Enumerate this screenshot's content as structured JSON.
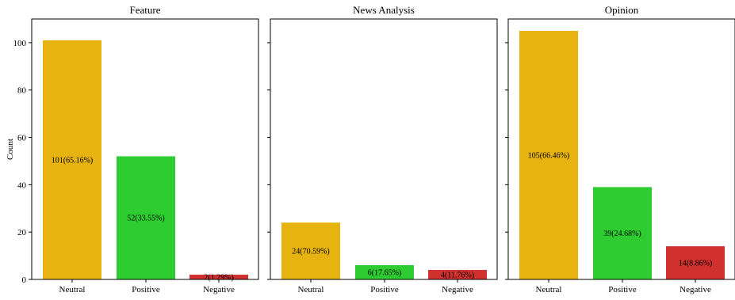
{
  "chart_data": {
    "type": "bar",
    "ylabel": "Count",
    "ylim": [
      0,
      110
    ],
    "yticks": [
      0,
      20,
      40,
      60,
      80,
      100
    ],
    "categories": [
      "Neutral",
      "Positive",
      "Negative"
    ],
    "colors": {
      "Neutral": "#E6B310",
      "Positive": "#2ECC31",
      "Negative": "#D0302E"
    },
    "panels": [
      {
        "title": "Feature",
        "values": [
          101,
          52,
          2
        ],
        "labels": [
          "101(65.16%)",
          "52(33.55%)",
          "2(1.29%)"
        ]
      },
      {
        "title": "News Analysis",
        "values": [
          24,
          6,
          4
        ],
        "labels": [
          "24(70.59%)",
          "6(17.65%)",
          "4(11.76%)"
        ]
      },
      {
        "title": "Opinion",
        "values": [
          105,
          39,
          14
        ],
        "labels": [
          "105(66.46%)",
          "39(24.68%)",
          "14(8.86%)"
        ]
      }
    ]
  }
}
